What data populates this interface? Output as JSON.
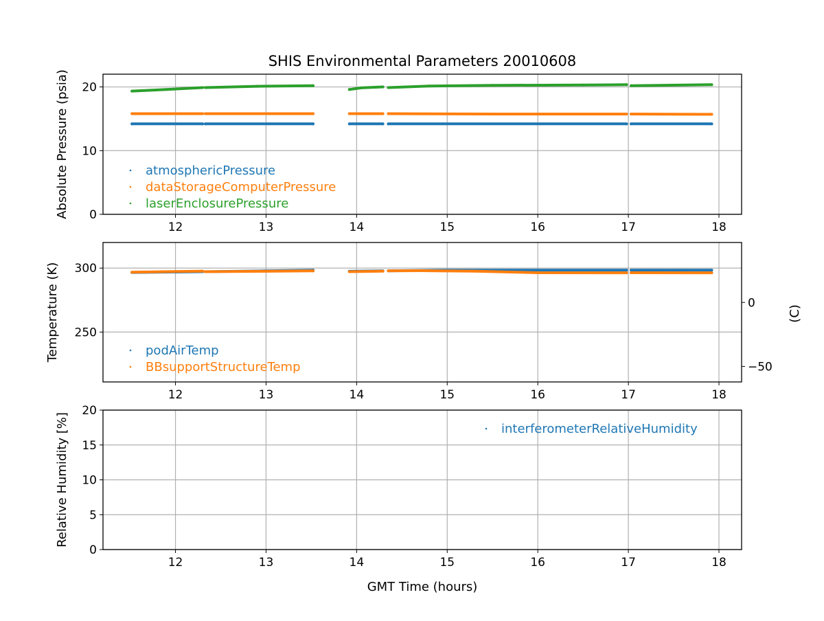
{
  "chart_data": {
    "type": "scatter",
    "title": "SHIS Environmental Parameters 20010608",
    "xlabel": "GMT Time (hours)",
    "xlim": [
      11.2,
      18.25
    ],
    "xticks": [
      12,
      13,
      14,
      15,
      16,
      17,
      18
    ],
    "grid": true,
    "panels": [
      {
        "ylabel": "Absolute Pressure (psia)",
        "ylim": [
          0,
          22
        ],
        "yticks": [
          0,
          10,
          20
        ],
        "legend_placement": "lower-left",
        "series": [
          {
            "name": "atmosphericPressure",
            "color": "#1f77b4",
            "segments": [
              [
                [
                  11.52,
                  14.2
                ],
                [
                  12.3,
                  14.2
                ]
              ],
              [
                [
                  12.33,
                  14.2
                ],
                [
                  13.52,
                  14.2
                ]
              ],
              [
                [
                  13.92,
                  14.2
                ],
                [
                  14.29,
                  14.2
                ]
              ],
              [
                [
                  14.35,
                  14.2
                ],
                [
                  16.98,
                  14.2
                ]
              ],
              [
                [
                  17.03,
                  14.2
                ],
                [
                  17.92,
                  14.2
                ]
              ]
            ]
          },
          {
            "name": "dataStorageComputerPressure",
            "color": "#ff7f0e",
            "segments": [
              [
                [
                  11.52,
                  15.8
                ],
                [
                  12.3,
                  15.8
                ]
              ],
              [
                [
                  12.33,
                  15.8
                ],
                [
                  13.52,
                  15.8
                ]
              ],
              [
                [
                  13.92,
                  15.8
                ],
                [
                  14.29,
                  15.8
                ]
              ],
              [
                [
                  14.35,
                  15.8
                ],
                [
                  15.5,
                  15.75
                ],
                [
                  16.98,
                  15.75
                ]
              ],
              [
                [
                  17.03,
                  15.75
                ],
                [
                  17.92,
                  15.7
                ]
              ]
            ]
          },
          {
            "name": "laserEnclosurePressure",
            "color": "#2ca02c",
            "segments": [
              [
                [
                  11.52,
                  19.35
                ],
                [
                  11.9,
                  19.6
                ],
                [
                  12.3,
                  19.9
                ]
              ],
              [
                [
                  12.33,
                  19.9
                ],
                [
                  12.9,
                  20.1
                ],
                [
                  13.52,
                  20.2
                ]
              ],
              [
                [
                  13.92,
                  19.6
                ],
                [
                  14.05,
                  19.85
                ],
                [
                  14.29,
                  20.0
                ]
              ],
              [
                [
                  14.35,
                  19.9
                ],
                [
                  14.8,
                  20.15
                ],
                [
                  15.5,
                  20.25
                ],
                [
                  16.5,
                  20.3
                ],
                [
                  16.98,
                  20.35
                ]
              ],
              [
                [
                  17.03,
                  20.2
                ],
                [
                  17.92,
                  20.35
                ]
              ]
            ]
          }
        ]
      },
      {
        "ylabel": "Temperature (K)",
        "ylim": [
          211,
          320
        ],
        "yticks": [
          250,
          300
        ],
        "y2label": "(C)",
        "y2ticks": [
          0,
          -50
        ],
        "legend_placement": "lower-left",
        "series": [
          {
            "name": "podAirTemp",
            "color": "#1f77b4",
            "segments": [
              [
                [
                  11.52,
                  296.6
                ],
                [
                  12.3,
                  297.2
                ]
              ],
              [
                [
                  12.33,
                  297.2
                ],
                [
                  13.0,
                  297.8
                ],
                [
                  13.52,
                  298.4
                ]
              ],
              [
                [
                  13.92,
                  297.5
                ],
                [
                  14.29,
                  297.8
                ]
              ],
              [
                [
                  14.35,
                  297.9
                ],
                [
                  15.0,
                  298.4
                ],
                [
                  16.0,
                  298.4
                ],
                [
                  16.98,
                  298.4
                ]
              ],
              [
                [
                  17.03,
                  298.4
                ],
                [
                  17.92,
                  298.4
                ]
              ]
            ]
          },
          {
            "name": "BBsupportStructureTemp",
            "color": "#ff7f0e",
            "segments": [
              [
                [
                  11.52,
                  296.8
                ],
                [
                  12.3,
                  297.6
                ]
              ],
              [
                [
                  12.33,
                  297.2
                ],
                [
                  13.0,
                  297.5
                ],
                [
                  13.52,
                  297.8
                ]
              ],
              [
                [
                  13.92,
                  297.2
                ],
                [
                  14.29,
                  297.6
                ]
              ],
              [
                [
                  14.35,
                  297.8
                ],
                [
                  14.7,
                  298.0
                ],
                [
                  15.3,
                  297.6
                ],
                [
                  16.0,
                  296.4
                ],
                [
                  16.98,
                  296.3
                ]
              ],
              [
                [
                  17.03,
                  296.4
                ],
                [
                  17.92,
                  296.3
                ]
              ]
            ]
          }
        ]
      },
      {
        "ylabel": "Relative Humidity [%]",
        "ylim": [
          0,
          20
        ],
        "yticks": [
          0,
          5,
          10,
          15,
          20
        ],
        "legend_placement": "upper-right",
        "series": [
          {
            "name": "interferometerRelativeHumidity",
            "color": "#1f77b4",
            "segments": []
          }
        ]
      }
    ]
  }
}
